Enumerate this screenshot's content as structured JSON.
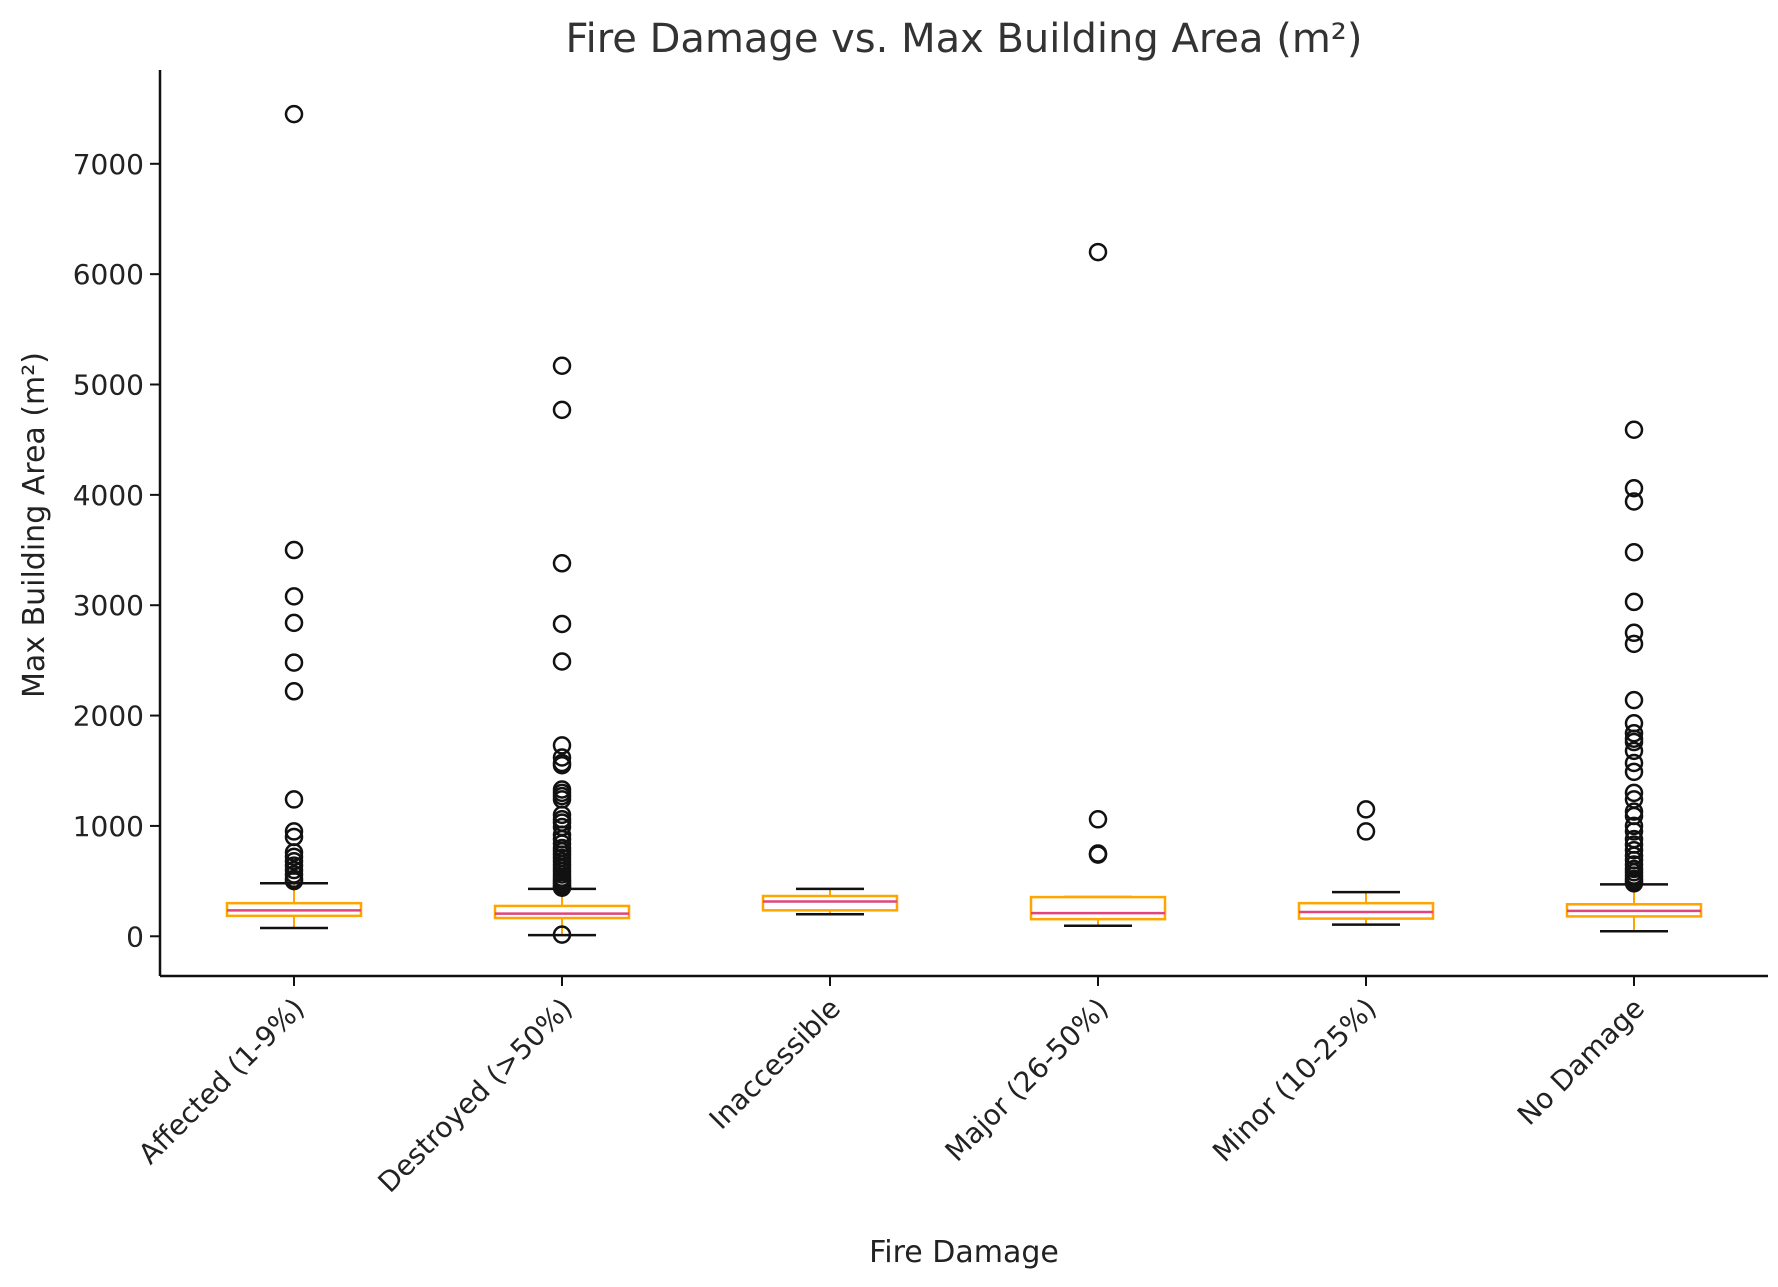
{
  "chart_data": {
    "type": "box",
    "title": "Fire Damage vs. Max Building Area (m²)",
    "xlabel": "Fire Damage",
    "ylabel": "Max Building Area (m²)",
    "ylim": [
      -360,
      7850
    ],
    "yticks": [
      0,
      1000,
      2000,
      3000,
      4000,
      5000,
      6000,
      7000
    ],
    "grid": false,
    "categories": [
      "Affected (1-9%)",
      "Destroyed (>50%)",
      "Inaccessible",
      "Major (26-50%)",
      "Minor (10-25%)",
      "No Damage"
    ],
    "boxes": [
      {
        "category": "Affected (1-9%)",
        "whisker_low": 75,
        "q1": 185,
        "median": 235,
        "q3": 300,
        "whisker_high": 480,
        "outliers": [
          7450,
          3500,
          3080,
          2840,
          2480,
          2220,
          1240,
          950,
          900,
          760,
          720,
          680,
          640,
          600,
          560,
          520,
          500
        ]
      },
      {
        "category": "Destroyed (>50%)",
        "whisker_low": 10,
        "q1": 165,
        "median": 205,
        "q3": 275,
        "whisker_high": 430,
        "outliers": [
          5170,
          4770,
          3380,
          2830,
          2490,
          1730,
          1620,
          1570,
          1550,
          1330,
          1300,
          1270,
          1240,
          1100,
          1060,
          1030,
          990,
          920,
          880,
          840,
          800,
          770,
          740,
          710,
          680,
          650,
          620,
          590,
          560,
          530,
          510,
          490,
          470,
          450,
          440,
          15
        ]
      },
      {
        "category": "Inaccessible",
        "whisker_low": 200,
        "q1": 235,
        "median": 315,
        "q3": 365,
        "whisker_high": 430,
        "outliers": []
      },
      {
        "category": "Major (26-50%)",
        "whisker_low": 95,
        "q1": 155,
        "median": 210,
        "q3": 355,
        "whisker_high": 355,
        "outliers": [
          6200,
          1060,
          750,
          740
        ]
      },
      {
        "category": "Minor (10-25%)",
        "whisker_low": 105,
        "q1": 160,
        "median": 220,
        "q3": 300,
        "whisker_high": 400,
        "outliers": [
          1150,
          950
        ]
      },
      {
        "category": "No Damage",
        "whisker_low": 45,
        "q1": 180,
        "median": 230,
        "q3": 290,
        "whisker_high": 470,
        "outliers": [
          4590,
          4060,
          3940,
          3480,
          3030,
          2750,
          2650,
          2140,
          1930,
          1840,
          1790,
          1760,
          1680,
          1570,
          1490,
          1300,
          1240,
          1130,
          1090,
          1000,
          950,
          880,
          830,
          780,
          730,
          690,
          650,
          610,
          580,
          550,
          520,
          500,
          480
        ]
      }
    ],
    "colors": {
      "box": "#ffa500",
      "median": "#e0457b",
      "whisker": "#111111",
      "outlier": "#111111",
      "axis": "#111111"
    }
  }
}
